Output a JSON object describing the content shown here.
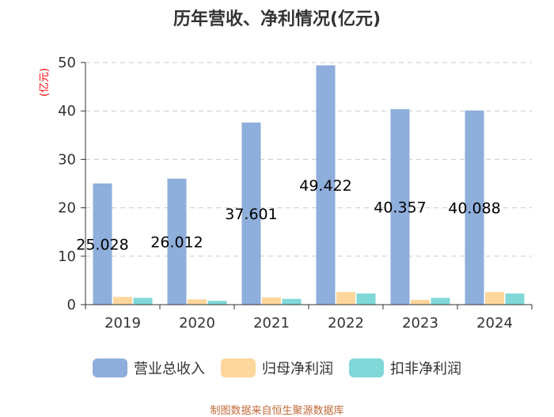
{
  "chart_data": {
    "type": "bar",
    "title": "历年营收、净利情况(亿元)",
    "unit_label": "(亿元)",
    "categories": [
      "2019",
      "2020",
      "2021",
      "2022",
      "2023",
      "2024"
    ],
    "series": [
      {
        "name": "营业总收入",
        "color": "#8eaedb",
        "values": [
          25.028,
          26.012,
          37.601,
          49.422,
          40.357,
          40.088
        ],
        "labels": [
          "25.028",
          "26.012",
          "37.601",
          "49.422",
          "40.357",
          "40.088"
        ]
      },
      {
        "name": "归母净利润",
        "color": "#fcd69b",
        "values": [
          1.6,
          1.1,
          1.5,
          2.6,
          1.0,
          2.6
        ]
      },
      {
        "name": "扣非净利润",
        "color": "#80d8d8",
        "values": [
          1.4,
          0.8,
          1.2,
          2.3,
          1.4,
          2.3
        ]
      }
    ],
    "ylim": [
      0,
      50
    ],
    "yticks": [
      "0",
      "10",
      "20",
      "30",
      "40",
      "50"
    ],
    "grid": true,
    "legend_position": "bottom"
  },
  "source": "制图数据来自恒生聚源数据库"
}
